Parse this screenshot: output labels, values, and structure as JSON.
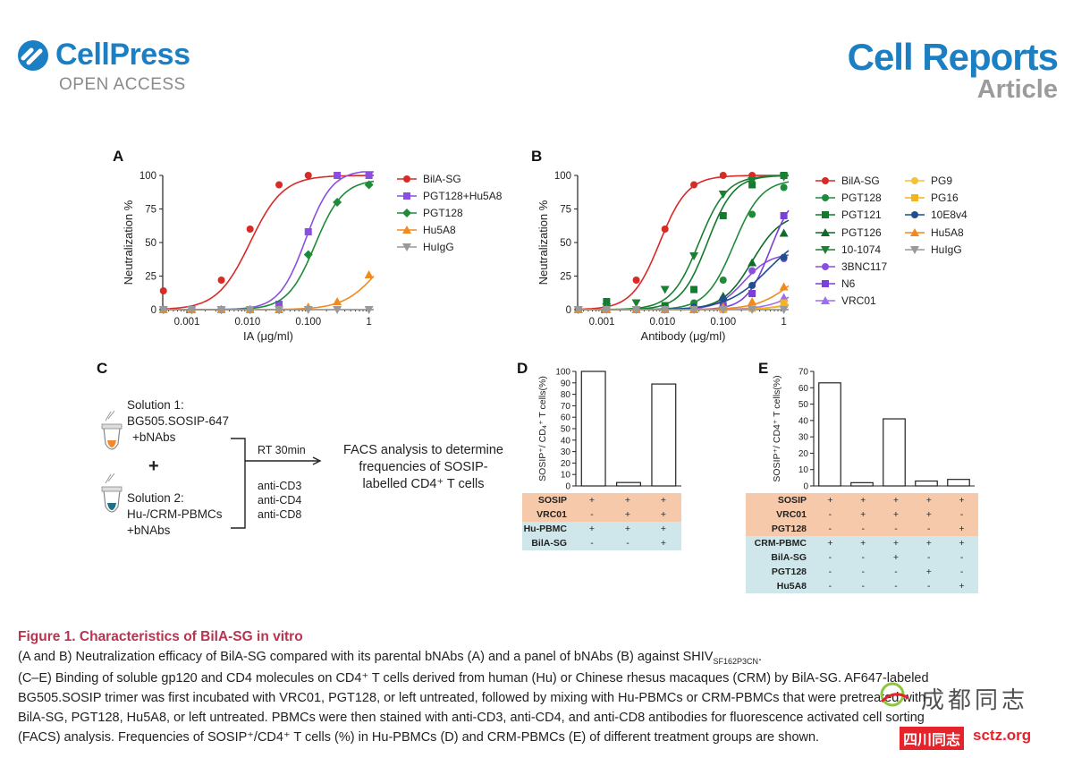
{
  "header": {
    "publisher": "CellPress",
    "publisher_sub": "OPEN ACCESS",
    "journal": "Cell Reports",
    "article_type": "Article"
  },
  "colors": {
    "brand_blue": "#1b7fc3",
    "caption_red": "#b5344f",
    "table_orange": "#f6c9aa",
    "table_blue": "#cfe7ea"
  },
  "panels": {
    "a": "A",
    "b": "B",
    "c": "C",
    "d": "D",
    "e": "E"
  },
  "chart_data": [
    {
      "panel": "A",
      "type": "line",
      "xlabel": "IA (μg/ml)",
      "ylabel": "Neutralization %",
      "xscale": "log",
      "xlim": [
        0.0004,
        1.2
      ],
      "ylim": [
        0,
        100
      ],
      "xticks": [
        "0.001",
        "0.010",
        "0.100",
        "1"
      ],
      "yticks": [
        "0",
        "25",
        "50",
        "75",
        "100"
      ],
      "legend_position": "right",
      "series": [
        {
          "name": "BilA-SG",
          "color": "#d62b27",
          "marker": "circle",
          "x": [
            0.00041,
            0.0012,
            0.0037,
            0.011,
            0.033,
            0.1,
            0.3,
            1
          ],
          "y": [
            14,
            0,
            22,
            60,
            93,
            100,
            100,
            100
          ],
          "fit": {
            "top": 100,
            "ec50": 0.011,
            "hill": 1.6
          }
        },
        {
          "name": "PGT128+Hu5A8",
          "color": "#8a4fe0",
          "marker": "square",
          "x": [
            0.00041,
            0.0012,
            0.0037,
            0.011,
            0.033,
            0.1,
            0.3,
            1
          ],
          "y": [
            0,
            0,
            0,
            0,
            4,
            58,
            100,
            100
          ],
          "fit": {
            "top": 104,
            "ec50": 0.09,
            "hill": 2.0
          }
        },
        {
          "name": "PGT128",
          "color": "#1f8a3a",
          "marker": "diamond",
          "x": [
            0.00041,
            0.0012,
            0.0037,
            0.011,
            0.033,
            0.1,
            0.3,
            1
          ],
          "y": [
            0,
            0,
            0,
            0,
            0,
            41,
            80,
            93
          ],
          "fit": {
            "top": 97,
            "ec50": 0.13,
            "hill": 1.9
          }
        },
        {
          "name": "Hu5A8",
          "color": "#f28a1e",
          "marker": "triangle",
          "x": [
            0.00041,
            0.0012,
            0.0037,
            0.011,
            0.033,
            0.1,
            0.3,
            1
          ],
          "y": [
            0,
            0,
            0,
            0,
            0,
            2,
            6,
            26
          ],
          "fit": {
            "top": 60,
            "ec50": 1.5,
            "hill": 1.5
          }
        },
        {
          "name": "HuIgG",
          "color": "#9a9a9a",
          "marker": "triangle-down",
          "x": [
            0.00041,
            0.0012,
            0.0037,
            0.011,
            0.033,
            0.1,
            0.3,
            1
          ],
          "y": [
            0,
            0,
            0,
            0,
            0,
            0,
            0,
            0
          ],
          "fit": {
            "top": 0,
            "ec50": 1,
            "hill": 1
          }
        }
      ]
    },
    {
      "panel": "B",
      "type": "line",
      "xlabel": "Antibody (μg/ml)",
      "ylabel": "Neutralization %",
      "xscale": "log",
      "xlim": [
        0.0004,
        1.2
      ],
      "ylim": [
        0,
        100
      ],
      "xticks": [
        "0.001",
        "0.010",
        "0.100",
        "1"
      ],
      "yticks": [
        "0",
        "25",
        "50",
        "75",
        "100"
      ],
      "legend_position": "right",
      "series": [
        {
          "name": "BilA-SG",
          "color": "#d62b27",
          "marker": "circle",
          "x": [
            0.00041,
            0.0012,
            0.0037,
            0.011,
            0.033,
            0.1,
            0.3,
            1
          ],
          "y": [
            0,
            2,
            22,
            60,
            93,
            100,
            100,
            100
          ],
          "fit": {
            "top": 100,
            "ec50": 0.009,
            "hill": 1.9
          }
        },
        {
          "name": "PGT128",
          "color": "#1f8a3a",
          "marker": "circle",
          "x": [
            0.00041,
            0.0012,
            0.0037,
            0.011,
            0.033,
            0.1,
            0.3,
            1
          ],
          "y": [
            0,
            0,
            0,
            0,
            5,
            22,
            71,
            91
          ],
          "fit": {
            "top": 97,
            "ec50": 0.15,
            "hill": 1.9
          }
        },
        {
          "name": "PGT121",
          "color": "#137a2e",
          "marker": "square",
          "x": [
            0.00041,
            0.0012,
            0.0037,
            0.011,
            0.033,
            0.1,
            0.3,
            1
          ],
          "y": [
            0,
            6,
            0,
            3,
            15,
            70,
            93,
            100
          ],
          "fit": {
            "top": 100,
            "ec50": 0.055,
            "hill": 2.0
          }
        },
        {
          "name": "PGT126",
          "color": "#0e6b28",
          "marker": "triangle",
          "x": [
            0.00041,
            0.0012,
            0.0037,
            0.011,
            0.033,
            0.1,
            0.3,
            1
          ],
          "y": [
            0,
            0,
            0,
            0,
            0,
            10,
            35,
            57
          ],
          "fit": {
            "top": 72,
            "ec50": 0.3,
            "hill": 1.8
          }
        },
        {
          "name": "10-1074",
          "color": "#1d7f34",
          "marker": "triangle-down",
          "x": [
            0.00041,
            0.0012,
            0.0037,
            0.011,
            0.033,
            0.1,
            0.3,
            1
          ],
          "y": [
            0,
            2,
            5,
            15,
            40,
            86,
            96,
            99
          ],
          "fit": {
            "top": 100,
            "ec50": 0.04,
            "hill": 1.9
          }
        },
        {
          "name": "3BNC117",
          "color": "#8a4fe0",
          "marker": "circle",
          "x": [
            0.00041,
            0.0012,
            0.0037,
            0.011,
            0.033,
            0.1,
            0.3,
            1
          ],
          "y": [
            0,
            0,
            0,
            0,
            0,
            5,
            29,
            38
          ],
          "fit": {
            "top": 42,
            "ec50": 0.22,
            "hill": 2.0
          }
        },
        {
          "name": "N6",
          "color": "#7a3fd8",
          "marker": "square",
          "x": [
            0.00041,
            0.0012,
            0.0037,
            0.011,
            0.033,
            0.1,
            0.3,
            1
          ],
          "y": [
            0,
            0,
            0,
            0,
            0,
            2,
            12,
            70
          ],
          "fit": {
            "top": 90,
            "ec50": 0.6,
            "hill": 2.2
          }
        },
        {
          "name": "VRC01",
          "color": "#9d6ef0",
          "marker": "triangle",
          "x": [
            0.00041,
            0.0012,
            0.0037,
            0.011,
            0.033,
            0.1,
            0.3,
            1
          ],
          "y": [
            0,
            0,
            0,
            0,
            0,
            1,
            3,
            9
          ],
          "fit": {
            "top": 30,
            "ec50": 2.0,
            "hill": 1.6
          }
        },
        {
          "name": "PG9",
          "color": "#f2c23a",
          "marker": "circle",
          "x": [
            0.00041,
            0.0012,
            0.0037,
            0.011,
            0.033,
            0.1,
            0.3,
            1
          ],
          "y": [
            0,
            0,
            0,
            0,
            0,
            0,
            1,
            3
          ],
          "fit": {
            "top": 10,
            "ec50": 2,
            "hill": 1.5
          }
        },
        {
          "name": "PG16",
          "color": "#f5b41a",
          "marker": "square",
          "x": [
            0.00041,
            0.0012,
            0.0037,
            0.011,
            0.033,
            0.1,
            0.3,
            1
          ],
          "y": [
            0,
            0,
            0,
            0,
            0,
            0,
            1,
            5
          ],
          "fit": {
            "top": 12,
            "ec50": 2,
            "hill": 1.5
          }
        },
        {
          "name": "10E8v4",
          "color": "#1f4f8c",
          "marker": "circle",
          "x": [
            0.00041,
            0.0012,
            0.0037,
            0.011,
            0.033,
            0.1,
            0.3,
            1
          ],
          "y": [
            0,
            0,
            0,
            0,
            2,
            8,
            18,
            39
          ],
          "fit": {
            "top": 60,
            "ec50": 0.55,
            "hill": 1.3
          }
        },
        {
          "name": "Hu5A8",
          "color": "#f28a1e",
          "marker": "triangle",
          "x": [
            0.00041,
            0.0012,
            0.0037,
            0.011,
            0.033,
            0.1,
            0.3,
            1
          ],
          "y": [
            0,
            0,
            0,
            0,
            0,
            2,
            6,
            17
          ],
          "fit": {
            "top": 40,
            "ec50": 1.4,
            "hill": 1.5
          }
        },
        {
          "name": "HuIgG",
          "color": "#9a9a9a",
          "marker": "triangle-down",
          "x": [
            0.00041,
            0.0012,
            0.0037,
            0.011,
            0.033,
            0.1,
            0.3,
            1
          ],
          "y": [
            0,
            0,
            0,
            0,
            0,
            0,
            0,
            0
          ],
          "fit": {
            "top": 0,
            "ec50": 1,
            "hill": 1
          }
        }
      ]
    },
    {
      "panel": "D",
      "type": "bar",
      "ylabel": "SOSIP⁺/ CD₄⁺ T cells(%)",
      "ylim": [
        0,
        100
      ],
      "yticks": [
        "0",
        "10",
        "20",
        "30",
        "40",
        "50",
        "60",
        "70",
        "80",
        "90",
        "100"
      ],
      "values": [
        100,
        3,
        89
      ]
    },
    {
      "panel": "E",
      "type": "bar",
      "ylabel": "SOSIP⁺/ CD4⁺ T cells(%)",
      "ylim": [
        0,
        70
      ],
      "yticks": [
        "0",
        "10",
        "20",
        "30",
        "40",
        "50",
        "60",
        "70"
      ],
      "values": [
        63,
        2,
        41,
        3,
        4
      ]
    }
  ],
  "panel_c": {
    "solution1": [
      "Solution 1:",
      "BG505.SOSIP-647",
      "+bNAbs"
    ],
    "plus": "+",
    "solution2": [
      "Solution 2:",
      "Hu-/CRM-PBMCs",
      "+bNAbs"
    ],
    "incubation": "RT 30min",
    "stains": [
      "anti-CD3",
      "anti-CD4",
      "anti-CD8"
    ],
    "result": [
      "FACS analysis to determine",
      "frequencies of SOSIP-",
      "labelled CD4⁺ T cells"
    ]
  },
  "table_d": {
    "rows": [
      {
        "label": "SOSIP",
        "group": "orange",
        "cells": [
          "+",
          "+",
          "+"
        ]
      },
      {
        "label": "VRC01",
        "group": "orange",
        "cells": [
          "-",
          "+",
          "+"
        ]
      },
      {
        "label": "Hu-PBMC",
        "group": "blue",
        "cells": [
          "+",
          "+",
          "+"
        ]
      },
      {
        "label": "BilA-SG",
        "group": "blue",
        "cells": [
          "-",
          "-",
          "+"
        ]
      }
    ]
  },
  "table_e": {
    "rows": [
      {
        "label": "SOSIP",
        "group": "orange",
        "cells": [
          "+",
          "+",
          "+",
          "+",
          "+"
        ]
      },
      {
        "label": "VRC01",
        "group": "orange",
        "cells": [
          "-",
          "+",
          "+",
          "+",
          "-"
        ]
      },
      {
        "label": "PGT128",
        "group": "orange",
        "cells": [
          "-",
          "-",
          "-",
          "-",
          "+"
        ]
      },
      {
        "label": "CRM-PBMC",
        "group": "blue",
        "cells": [
          "+",
          "+",
          "+",
          "+",
          "+"
        ]
      },
      {
        "label": "BilA-SG",
        "group": "blue",
        "cells": [
          "-",
          "-",
          "+",
          "-",
          "-"
        ]
      },
      {
        "label": "PGT128",
        "group": "blue",
        "cells": [
          "-",
          "-",
          "-",
          "+",
          "-"
        ]
      },
      {
        "label": "Hu5A8",
        "group": "blue",
        "cells": [
          "-",
          "-",
          "-",
          "-",
          "+"
        ]
      }
    ]
  },
  "caption": {
    "title": "Figure 1.  Characteristics of BilA-SG in vitro",
    "line1": "(A and B) Neutralization efficacy of BilA-SG compared with its parental bNAbs (A) and a panel of bNAbs (B) against SHIV",
    "line1_sub": "SF162P3CN",
    "line2": "(C–E) Binding of soluble gp120 and CD4 molecules on CD4⁺ T cells derived from human (Hu) or Chinese rhesus macaques (CRM) by BilA-SG. AF647-labeled",
    "line3": "BG505.SOSIP trimer was first incubated with VRC01, PGT128, or left untreated, followed by mixing with Hu-PBMCs or CRM-PBMCs that were pretreated with",
    "line4": "BilA-SG, PGT128, Hu5A8, or left untreated. PBMCs were then stained with anti-CD3, anti-CD4, and anti-CD8 antibodies for fluorescence activated cell sorting",
    "line5": "(FACS) analysis. Frequencies of SOSIP⁺/CD4⁺ T cells (%) in Hu-PBMCs (D) and CRM-PBMCs (E) of different treatment groups are shown."
  },
  "watermark": {
    "text1": "成都同志",
    "text2": "四川同志",
    "text3": "sctz.org"
  }
}
